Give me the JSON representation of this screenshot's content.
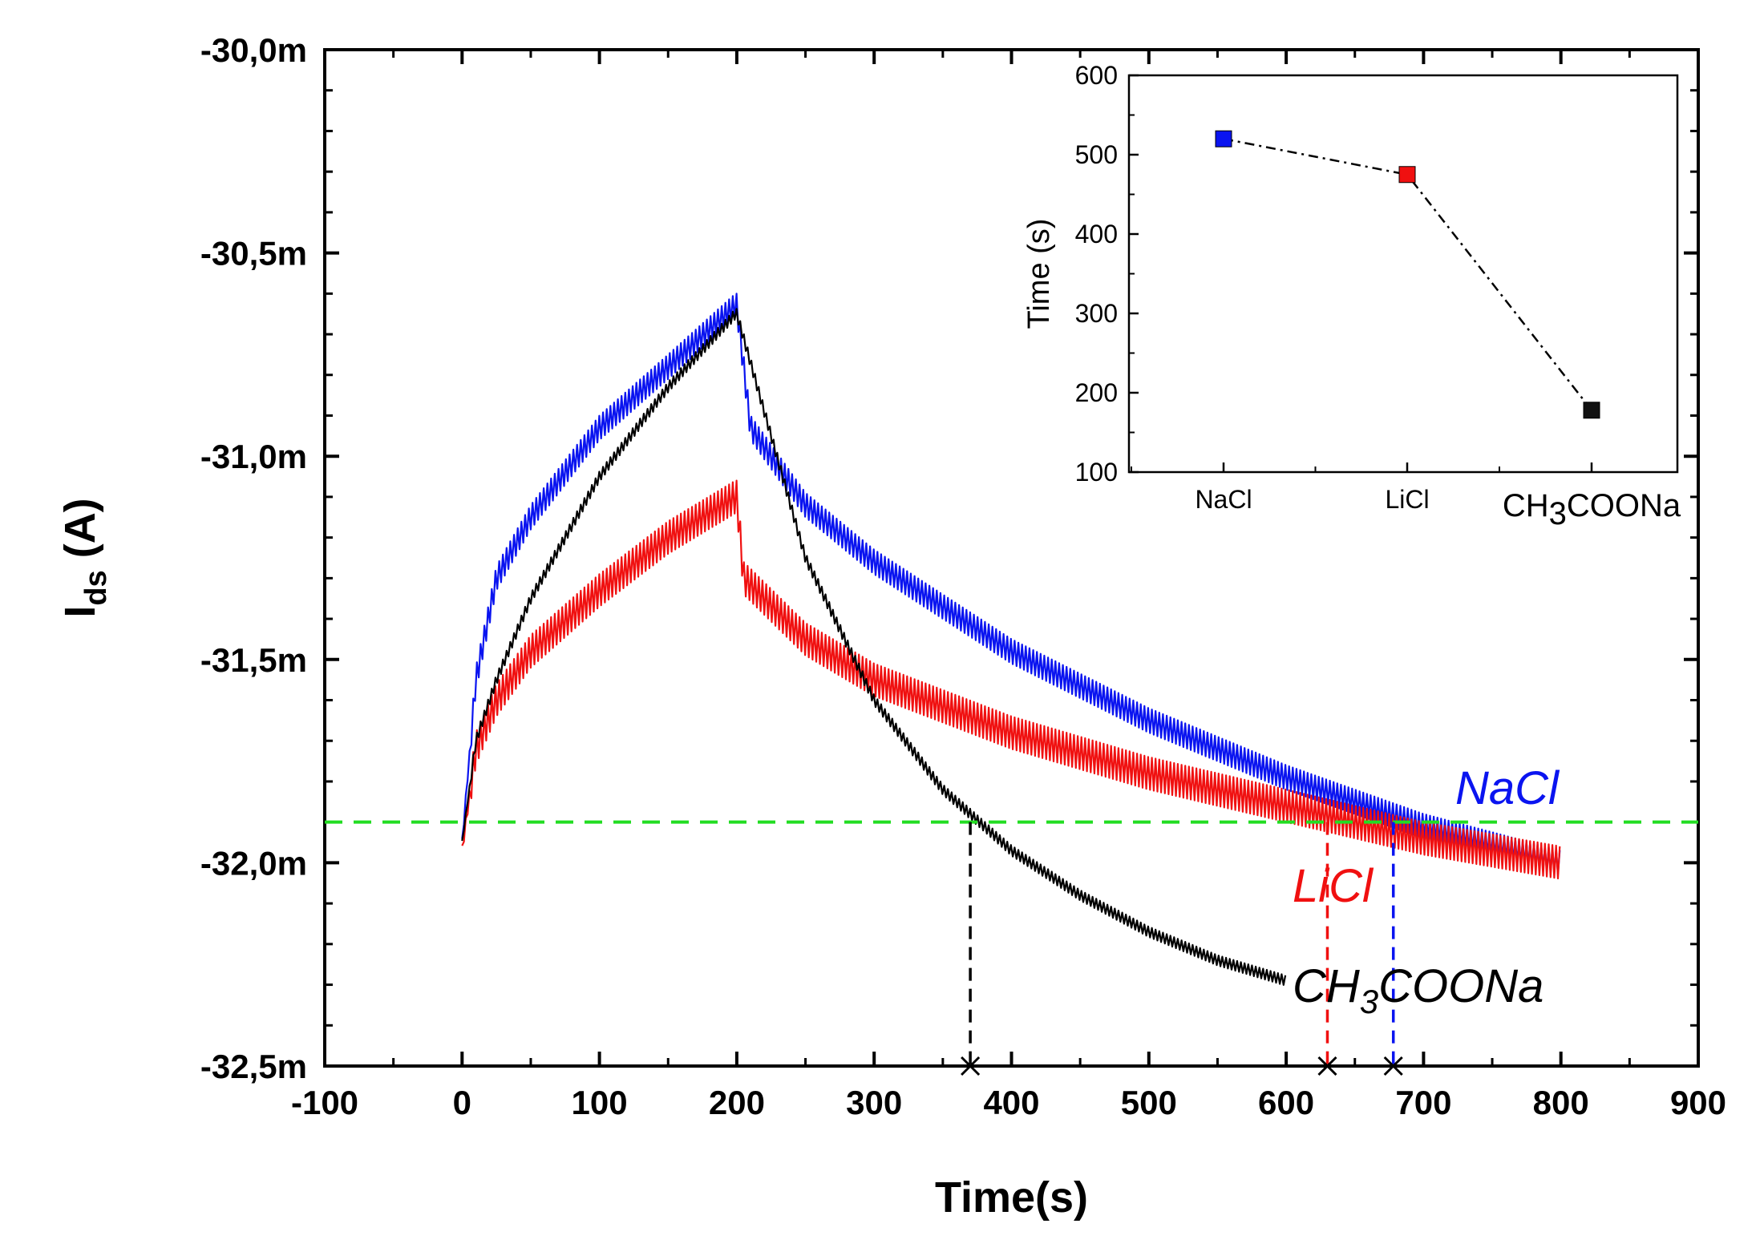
{
  "chart_data": [
    {
      "type": "line",
      "xlabel": "Time(s)",
      "ylabel": "I",
      "ylabel_sub": "ds",
      "ylabel_unit": " (A)",
      "xlim": [
        -100,
        900
      ],
      "ylim": [
        -32.5,
        -30.0
      ],
      "x_ticks": [
        -100,
        0,
        100,
        200,
        300,
        400,
        500,
        600,
        700,
        800,
        900
      ],
      "x_tick_labels": [
        "-100",
        "0",
        "100",
        "200",
        "300",
        "400",
        "500",
        "600",
        "700",
        "800",
        "900"
      ],
      "y_ticks": [
        -30.0,
        -30.5,
        -31.0,
        -31.5,
        -32.0,
        -32.5
      ],
      "y_tick_labels": [
        "-30,0m",
        "-30,5m",
        "-31,0m",
        "-31,5m",
        "-32,0m",
        "-32,5m"
      ],
      "y_unit": "mA",
      "grid": false,
      "threshold": {
        "y": -31.9,
        "color": "#22dd22",
        "style": "dashed"
      },
      "series": [
        {
          "name": "NaCl",
          "color": "#0a14f0",
          "band": 0.06,
          "points": [
            [
              0,
              -31.95
            ],
            [
              10,
              -31.55
            ],
            [
              25,
              -31.3
            ],
            [
              50,
              -31.15
            ],
            [
              100,
              -30.93
            ],
            [
              150,
              -30.78
            ],
            [
              199,
              -30.63
            ],
            [
              200,
              -30.63
            ],
            [
              210,
              -30.93
            ],
            [
              250,
              -31.12
            ],
            [
              300,
              -31.26
            ],
            [
              400,
              -31.48
            ],
            [
              500,
              -31.65
            ],
            [
              600,
              -31.79
            ],
            [
              700,
              -31.91
            ],
            [
              800,
              -32.0
            ]
          ],
          "crossing_x": 678
        },
        {
          "name": "LiCl",
          "color": "#f01010",
          "band": 0.08,
          "points": [
            [
              0,
              -31.97
            ],
            [
              10,
              -31.72
            ],
            [
              25,
              -31.6
            ],
            [
              50,
              -31.48
            ],
            [
              100,
              -31.33
            ],
            [
              150,
              -31.2
            ],
            [
              199,
              -31.1
            ],
            [
              200,
              -31.1
            ],
            [
              205,
              -31.3
            ],
            [
              250,
              -31.45
            ],
            [
              300,
              -31.55
            ],
            [
              400,
              -31.68
            ],
            [
              500,
              -31.78
            ],
            [
              600,
              -31.86
            ],
            [
              700,
              -31.94
            ],
            [
              800,
              -32.0
            ]
          ],
          "crossing_x": 630
        },
        {
          "name": "CH3COONa",
          "name_parts": [
            "CH",
            "3",
            "COONa"
          ],
          "color": "#000000",
          "band": 0.025,
          "points": [
            [
              0,
              -31.95
            ],
            [
              10,
              -31.7
            ],
            [
              25,
              -31.55
            ],
            [
              50,
              -31.35
            ],
            [
              100,
              -31.05
            ],
            [
              150,
              -30.83
            ],
            [
              199,
              -30.65
            ],
            [
              200,
              -30.65
            ],
            [
              250,
              -31.25
            ],
            [
              300,
              -31.6
            ],
            [
              350,
              -31.82
            ],
            [
              400,
              -31.97
            ],
            [
              450,
              -32.08
            ],
            [
              500,
              -32.17
            ],
            [
              550,
              -32.24
            ],
            [
              600,
              -32.29
            ]
          ],
          "crossing_x": 370
        }
      ]
    },
    {
      "type": "line",
      "inset": true,
      "ylabel": "Time (s)",
      "categories": [
        "NaCl",
        "LiCl",
        "CH3COONa"
      ],
      "category_labels": [
        {
          "parts": [
            "NaCl"
          ]
        },
        {
          "parts": [
            "LiCl"
          ]
        },
        {
          "parts": [
            "CH",
            "3",
            "COONa"
          ]
        }
      ],
      "values": [
        520,
        475,
        178
      ],
      "marker_colors": [
        "#0a14f0",
        "#f01010",
        "#111111"
      ],
      "line_style": "dash-dot",
      "ylim": [
        100,
        600
      ],
      "y_ticks": [
        100,
        200,
        300,
        400,
        500,
        600
      ],
      "y_tick_labels": [
        "100",
        "200",
        "300",
        "400",
        "500",
        "600"
      ]
    }
  ]
}
